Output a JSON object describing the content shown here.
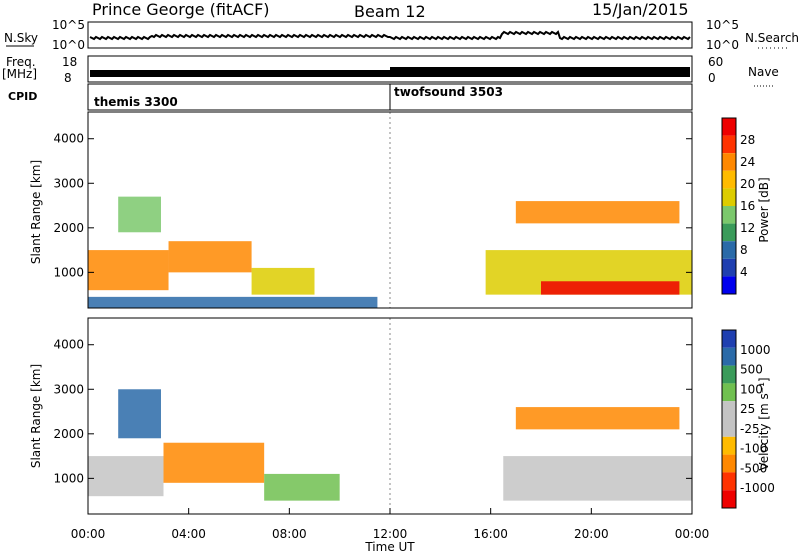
{
  "header": {
    "station": "Prince George (fitACF)",
    "beam": "Beam 12",
    "date": "15/Jan/2015"
  },
  "strips": {
    "nsky": {
      "label": "N.Sky",
      "ticks": [
        "10^5",
        "10^0"
      ]
    },
    "nsearch": {
      "label": "N.Search"
    },
    "freq": {
      "label1": "Freq.",
      "label2": "[MHz]",
      "ticks": [
        "18",
        "8"
      ]
    },
    "nave": {
      "label": "Nave",
      "ticks": [
        "60",
        "0"
      ]
    },
    "cpid": {
      "label": "CPID",
      "programs": [
        {
          "name": "themis 3300",
          "start_hour": 0
        },
        {
          "name": "twofsound 3503",
          "start_hour": 12
        }
      ]
    }
  },
  "colorbars": {
    "power": {
      "label": "Power [dB]",
      "ticks": [
        "28",
        "24",
        "20",
        "16",
        "12",
        "8",
        "4"
      ],
      "colors": [
        "#ee0000",
        "#ff3300",
        "#ff8800",
        "#ffbb00",
        "#ddcc00",
        "#7bc86c",
        "#3a9b5a",
        "#2a6aa8",
        "#1f3fb0",
        "#0000ee"
      ]
    },
    "velocity": {
      "label": "Velocity [m s⁻¹]",
      "ticks": [
        "1000",
        "500",
        "100",
        "25",
        "-25",
        "-100",
        "-500",
        "-1000"
      ],
      "colors": [
        "#1f3fb0",
        "#2a6aa8",
        "#3a9b5a",
        "#70c050",
        "#c4c4c4",
        "#c4c4c4",
        "#ffbb00",
        "#ff8800",
        "#ff3300",
        "#ee0000"
      ]
    }
  },
  "chart_data": [
    {
      "type": "heatmap",
      "title": "",
      "xlabel": "Time UT",
      "ylabel": "Slant Range [km]",
      "xlim_hours": [
        0,
        24
      ],
      "x_ticks": [
        "00:00",
        "04:00",
        "08:00",
        "12:00",
        "16:00",
        "20:00",
        "00:00"
      ],
      "ylim": [
        200,
        4600
      ],
      "y_ticks": [
        1000,
        2000,
        3000,
        4000
      ],
      "quantity": "Power [dB]",
      "regions": [
        {
          "t": [
            0,
            3.2
          ],
          "r": [
            600,
            1500
          ],
          "v": 22
        },
        {
          "t": [
            1.2,
            2.9
          ],
          "r": [
            1900,
            2700
          ],
          "v": 16
        },
        {
          "t": [
            3.2,
            6.5
          ],
          "r": [
            1000,
            1700
          ],
          "v": 22
        },
        {
          "t": [
            6.5,
            9.0
          ],
          "r": [
            500,
            1100
          ],
          "v": 18
        },
        {
          "t": [
            0,
            11.5
          ],
          "r": [
            200,
            450
          ],
          "v": 8
        },
        {
          "t": [
            15.8,
            24
          ],
          "r": [
            500,
            1500
          ],
          "v": 18
        },
        {
          "t": [
            17.0,
            23.5
          ],
          "r": [
            2100,
            2600
          ],
          "v": 22
        },
        {
          "t": [
            18.0,
            23.5
          ],
          "r": [
            500,
            800
          ],
          "v": 28
        }
      ]
    },
    {
      "type": "heatmap",
      "title": "",
      "xlabel": "Time UT",
      "ylabel": "Slant Range [km]",
      "xlim_hours": [
        0,
        24
      ],
      "x_ticks": [
        "00:00",
        "04:00",
        "08:00",
        "12:00",
        "16:00",
        "20:00",
        "00:00"
      ],
      "ylim": [
        200,
        4600
      ],
      "y_ticks": [
        1000,
        2000,
        3000,
        4000
      ],
      "quantity": "Velocity [m s⁻¹]",
      "regions": [
        {
          "t": [
            0,
            3.0
          ],
          "r": [
            600,
            1500
          ],
          "v": 0
        },
        {
          "t": [
            1.2,
            2.9
          ],
          "r": [
            1900,
            3000
          ],
          "v": 500
        },
        {
          "t": [
            3.0,
            7.0
          ],
          "r": [
            900,
            1800
          ],
          "v": -200
        },
        {
          "t": [
            7.0,
            10.0
          ],
          "r": [
            500,
            1100
          ],
          "v": 100
        },
        {
          "t": [
            16.5,
            24
          ],
          "r": [
            500,
            1500
          ],
          "v": 0
        },
        {
          "t": [
            17.0,
            23.5
          ],
          "r": [
            2100,
            2600
          ],
          "v": -200
        }
      ]
    }
  ]
}
